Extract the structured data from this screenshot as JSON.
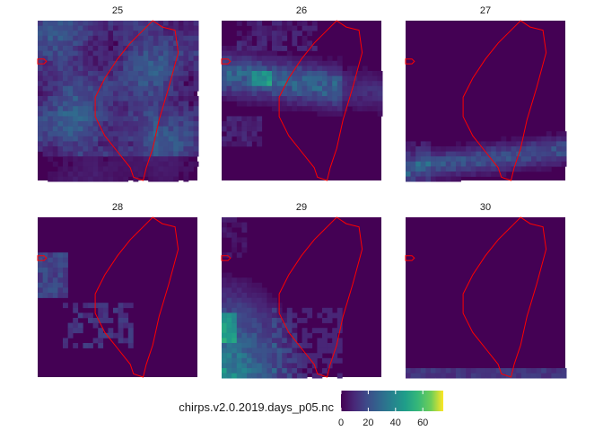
{
  "chart_data": {
    "type": "heatmap",
    "source_file": "chirps.v2.0.2019.days_p05.nc",
    "colormap": "viridis",
    "outline_color": "#ff0000",
    "panels": [
      {
        "title": "25",
        "pattern": "scattered"
      },
      {
        "title": "26",
        "pattern": "west-band"
      },
      {
        "title": "27",
        "pattern": "south-band"
      },
      {
        "title": "28",
        "pattern": "west-sparse"
      },
      {
        "title": "29",
        "pattern": "southwest-heavy"
      },
      {
        "title": "30",
        "pattern": "south-strip"
      }
    ],
    "legend": {
      "title": "chirps.v2.0.2019.days_p05.nc",
      "ticks": [
        0,
        20,
        40,
        60
      ],
      "min": 0,
      "max": 75
    }
  }
}
